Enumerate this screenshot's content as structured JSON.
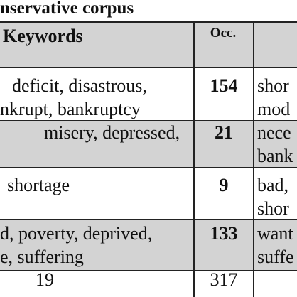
{
  "title": "nservative corpus",
  "header": {
    "keywords": "Keywords",
    "occ": "Occ."
  },
  "rows": [
    {
      "keywords": [
        "deficit, disastrous,",
        "nkrupt, bankruptcy"
      ],
      "occ": "154",
      "next": [
        "shor",
        "mod"
      ]
    },
    {
      "keywords": [
        "misery, depressed,"
      ],
      "occ": "21",
      "next": [
        "nece",
        "bank"
      ]
    },
    {
      "keywords": [
        "shortage"
      ],
      "occ": "9",
      "next": [
        "bad,",
        "shor"
      ]
    },
    {
      "keywords": [
        "d, poverty, deprived,",
        "e, suffering"
      ],
      "occ": "133",
      "next": [
        "want",
        "suffe"
      ]
    },
    {
      "keywords": [
        "19"
      ],
      "occ": "317",
      "next": []
    }
  ]
}
